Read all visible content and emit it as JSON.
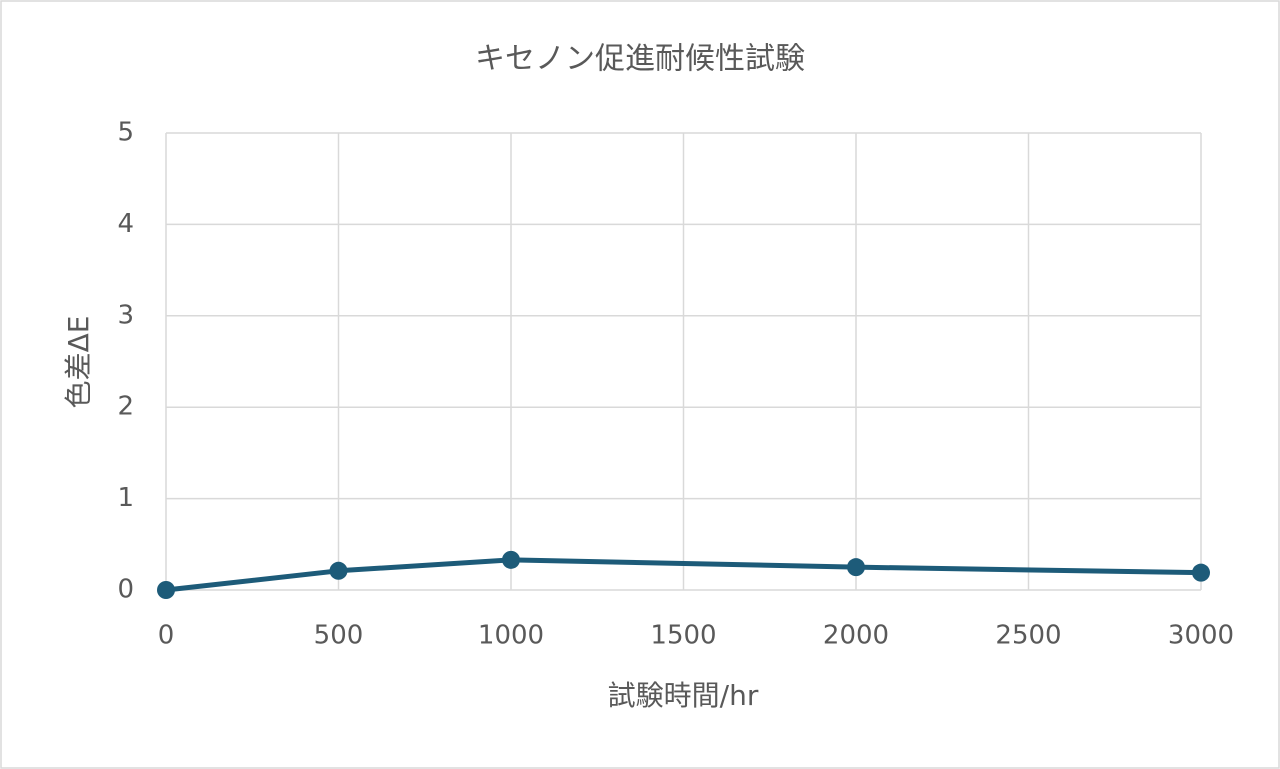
{
  "chart_data": {
    "type": "line",
    "title": "キセノン促進耐候性試験",
    "x_label": "試験時間/hr",
    "y_label": "色差ΔE",
    "x": [
      0,
      500,
      1000,
      2000,
      3000
    ],
    "values": [
      0,
      0.21,
      0.33,
      0.25,
      0.19
    ],
    "color": "#1d5b79",
    "xlim": [
      0,
      3000
    ],
    "xticks": [
      0,
      500,
      1000,
      1500,
      2000,
      2500,
      3000
    ],
    "ylim": [
      0,
      5
    ],
    "yticks": [
      0,
      1,
      2,
      3,
      4,
      5
    ],
    "grid": true
  }
}
